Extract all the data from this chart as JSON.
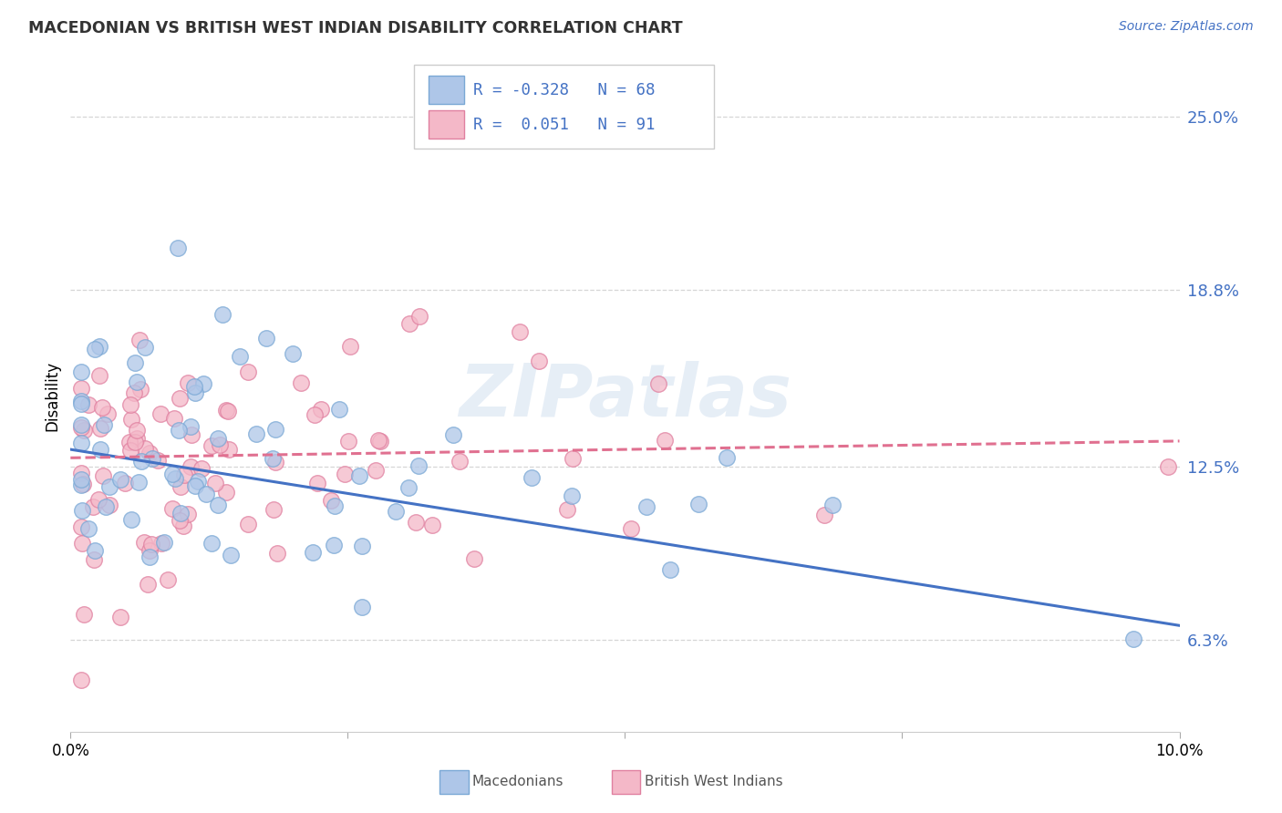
{
  "title": "MACEDONIAN VS BRITISH WEST INDIAN DISABILITY CORRELATION CHART",
  "source": "Source: ZipAtlas.com",
  "ylabel": "Disability",
  "watermark": "ZIPatlas",
  "xlim": [
    0.0,
    0.1
  ],
  "ylim": [
    0.03,
    0.27
  ],
  "yticks": [
    0.063,
    0.125,
    0.188,
    0.25
  ],
  "ytick_labels": [
    "6.3%",
    "12.5%",
    "18.8%",
    "25.0%"
  ],
  "grid_color": "#cccccc",
  "background_color": "#ffffff",
  "macedonians": {
    "color": "#aec6e8",
    "edge_color": "#7aa8d5",
    "R": -0.328,
    "N": 68,
    "line_color": "#4472c4",
    "trend_x": [
      0.0,
      0.1
    ],
    "trend_y": [
      0.131,
      0.068
    ]
  },
  "british_west_indians": {
    "color": "#f4b8c8",
    "edge_color": "#e080a0",
    "R": 0.051,
    "N": 91,
    "line_color": "#e07090",
    "trend_x": [
      0.0,
      0.1
    ],
    "trend_y": [
      0.128,
      0.134
    ]
  },
  "legend_R_color": "#4472c4",
  "legend_N_color": "#4472c4",
  "legend_label_color": "#333333"
}
